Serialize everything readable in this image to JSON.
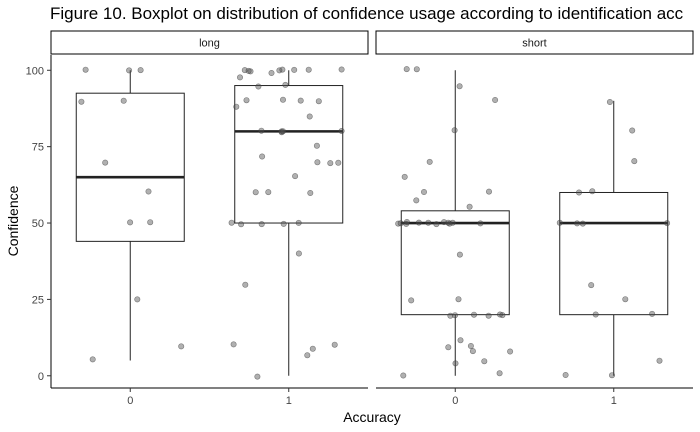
{
  "chart_data": {
    "type": "boxplot",
    "title": "Figure 10. Boxplot on distribution of confidence usage according to identification acc",
    "xlabel": "Accuracy",
    "ylabel": "Confidence",
    "ylim": [
      -4,
      105
    ],
    "yticks": [
      0,
      25,
      50,
      75,
      100
    ],
    "xcategories": [
      "0",
      "1"
    ],
    "grid": false,
    "facets": [
      {
        "label": "long",
        "boxes": [
          {
            "x": "0",
            "min": 5,
            "q1": 44,
            "median": 65,
            "q3": 92.5,
            "max": 100,
            "points": [
              100,
              100,
              90,
              90,
              100,
              70,
              60,
              50,
              50,
              25,
              5,
              10
            ]
          },
          {
            "x": "1",
            "min": 0,
            "q1": 50,
            "median": 80,
            "q3": 95,
            "max": 100,
            "points": [
              100,
              100,
              100,
              100,
              100,
              100,
              100,
              100,
              99,
              98,
              95,
              95,
              90,
              90,
              90,
              90,
              88,
              85,
              80,
              80,
              80,
              80,
              80,
              75,
              72,
              70,
              70,
              70,
              65,
              60,
              60,
              60,
              50,
              50,
              50,
              50,
              50,
              40,
              30,
              10,
              10,
              9,
              7,
              0
            ]
          }
        ]
      },
      {
        "label": "short",
        "boxes": [
          {
            "x": "0",
            "min": 0,
            "q1": 20,
            "median": 50,
            "q3": 54,
            "max": 100,
            "points": [
              100,
              100,
              95,
              90,
              80,
              70,
              65,
              60,
              60,
              57,
              55,
              50,
              50,
              50,
              50,
              50,
              50,
              50,
              50,
              50,
              50,
              50,
              50,
              40,
              25,
              25,
              20,
              20,
              20,
              20,
              20,
              20,
              12,
              10,
              9,
              8,
              8,
              5,
              4,
              1,
              0
            ]
          },
          {
            "x": "1",
            "min": 0,
            "q1": 20,
            "median": 50,
            "q3": 60,
            "max": 90,
            "points": [
              90,
              80,
              70,
              60,
              60,
              50,
              50,
              50,
              50,
              30,
              25,
              20,
              20,
              5,
              0,
              0
            ]
          }
        ]
      }
    ]
  }
}
